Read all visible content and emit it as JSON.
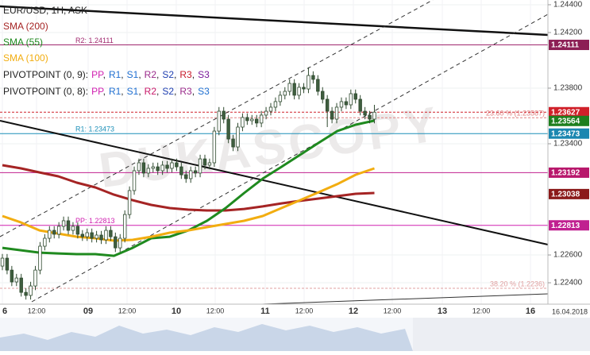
{
  "chart_data": {
    "type": "candlestick",
    "title": "EUR/USD, 1H, ASK",
    "watermark": "DUKASCOPY",
    "up_color": "#ffffff",
    "down_color": "#3f5e3f",
    "wick_color": "#2f4a2f",
    "open": [
      1.2252,
      1.22577,
      1.22491,
      1.22406,
      1.22434,
      1.22331,
      1.22309,
      1.22377,
      1.22491,
      1.22663,
      1.2272,
      1.22777,
      1.22749,
      1.22806,
      1.22846,
      1.22777,
      1.22806,
      1.22749,
      1.22731,
      1.2276,
      1.2272,
      1.22743,
      1.22709,
      1.22777,
      1.22731,
      1.22651,
      1.2272,
      1.22891,
      1.23063,
      1.23206,
      1.23263,
      1.23189,
      1.23223,
      1.23234,
      1.23206,
      1.23246,
      1.23223,
      1.23263,
      1.23234,
      1.23177,
      1.23149,
      1.23206,
      1.23189,
      1.23291,
      1.23246,
      1.23263,
      1.23491,
      1.23634,
      1.23577,
      1.23434,
      1.23377,
      1.2352,
      1.23589,
      1.23566,
      1.23577,
      1.23549,
      1.23606,
      1.23634,
      1.23663,
      1.23703,
      1.23749,
      1.23777,
      1.23834,
      1.23749,
      1.23806,
      1.23794,
      1.23891,
      1.23863,
      1.23777,
      1.2372,
      1.23634,
      1.23577,
      1.23663,
      1.23703,
      1.2368,
      1.2376,
      1.2372,
      1.23634,
      1.23606,
      1.23577
    ],
    "high": [
      1.22607,
      1.22607,
      1.22521,
      1.22464,
      1.22464,
      1.22361,
      1.22407,
      1.22521,
      1.22693,
      1.2275,
      1.22807,
      1.22807,
      1.22836,
      1.22876,
      1.22876,
      1.22836,
      1.22836,
      1.22779,
      1.2279,
      1.2279,
      1.22773,
      1.22773,
      1.22807,
      1.22807,
      1.22761,
      1.2275,
      1.22921,
      1.23093,
      1.23236,
      1.23293,
      1.23293,
      1.23253,
      1.23264,
      1.23264,
      1.23276,
      1.23276,
      1.23293,
      1.23293,
      1.23264,
      1.23207,
      1.23236,
      1.23236,
      1.23321,
      1.23321,
      1.23293,
      1.23521,
      1.23664,
      1.23664,
      1.23607,
      1.23464,
      1.2355,
      1.23619,
      1.23619,
      1.23607,
      1.23607,
      1.23636,
      1.23664,
      1.23693,
      1.23733,
      1.23779,
      1.23807,
      1.23864,
      1.23864,
      1.23836,
      1.23836,
      1.2395,
      1.23921,
      1.23893,
      1.23807,
      1.2375,
      1.23664,
      1.23693,
      1.23733,
      1.23733,
      1.2379,
      1.2379,
      1.2375,
      1.23664,
      1.23636,
      1.2368
    ],
    "low": [
      1.2249,
      1.22461,
      1.22376,
      1.22376,
      1.22301,
      1.22279,
      1.22279,
      1.22347,
      1.22461,
      1.22633,
      1.2269,
      1.22719,
      1.22719,
      1.22776,
      1.22747,
      1.22747,
      1.22719,
      1.22701,
      1.22701,
      1.2269,
      1.2269,
      1.22679,
      1.22679,
      1.22701,
      1.22621,
      1.22621,
      1.2269,
      1.22861,
      1.23033,
      1.23176,
      1.23159,
      1.23159,
      1.23193,
      1.23176,
      1.23176,
      1.23193,
      1.23193,
      1.23204,
      1.23147,
      1.23119,
      1.23119,
      1.23159,
      1.23159,
      1.23216,
      1.23216,
      1.23233,
      1.23461,
      1.23547,
      1.23404,
      1.23347,
      1.23347,
      1.2349,
      1.23536,
      1.23536,
      1.23519,
      1.23519,
      1.23576,
      1.23604,
      1.23633,
      1.23673,
      1.23719,
      1.23747,
      1.23719,
      1.23719,
      1.23764,
      1.23764,
      1.23833,
      1.23747,
      1.2369,
      1.2352,
      1.23547,
      1.23547,
      1.23633,
      1.2365,
      1.2365,
      1.2369,
      1.23604,
      1.23576,
      1.23547,
      1.23547
    ],
    "close": [
      1.22577,
      1.22491,
      1.22406,
      1.22434,
      1.22331,
      1.22309,
      1.22377,
      1.22491,
      1.22663,
      1.2272,
      1.22777,
      1.22749,
      1.22806,
      1.22846,
      1.22777,
      1.22806,
      1.22749,
      1.22731,
      1.2276,
      1.2272,
      1.22743,
      1.22709,
      1.22777,
      1.22731,
      1.22651,
      1.2272,
      1.22891,
      1.23063,
      1.23206,
      1.23263,
      1.23189,
      1.23223,
      1.23234,
      1.23206,
      1.23246,
      1.23223,
      1.23263,
      1.23234,
      1.23177,
      1.23149,
      1.23206,
      1.23189,
      1.23291,
      1.23246,
      1.23263,
      1.23491,
      1.23634,
      1.23577,
      1.23434,
      1.23377,
      1.2352,
      1.23589,
      1.23566,
      1.23577,
      1.23549,
      1.23606,
      1.23634,
      1.23663,
      1.23703,
      1.23749,
      1.23777,
      1.23834,
      1.23749,
      1.23806,
      1.23794,
      1.23891,
      1.23863,
      1.23777,
      1.2372,
      1.23634,
      1.23577,
      1.23663,
      1.23703,
      1.2368,
      1.2376,
      1.2372,
      1.23634,
      1.23606,
      1.23577,
      1.23627
    ],
    "overlays": [
      {
        "name": "SMA (200)",
        "color": "#a52424",
        "values": [
          1.23246,
          1.23223,
          1.23194,
          1.23166,
          1.2312,
          1.23086,
          1.23034,
          1.22994,
          1.2296,
          1.22937,
          1.22926,
          1.2292,
          1.2292,
          1.22931,
          1.22949,
          1.22971,
          1.22989,
          1.23006,
          1.23023,
          1.2304,
          1.23046
        ]
      },
      {
        "name": "SMA (55)",
        "color": "#1f8a1f",
        "values": [
          1.22651,
          1.22634,
          1.22617,
          1.22611,
          1.22606,
          1.22606,
          1.22594,
          1.22651,
          1.2272,
          1.22731,
          1.22777,
          1.22846,
          1.22937,
          1.23046,
          1.23149,
          1.23234,
          1.2332,
          1.23406,
          1.23491,
          1.23537,
          1.23566
        ]
      },
      {
        "name": "SMA (100)",
        "color": "#f2ad10",
        "values": [
          1.2288,
          1.22834,
          1.22777,
          1.22754,
          1.22731,
          1.2272,
          1.22703,
          1.22709,
          1.22731,
          1.2276,
          1.22777,
          1.228,
          1.22823,
          1.22846,
          1.2288,
          1.22937,
          1.22994,
          1.23051,
          1.23109,
          1.23177,
          1.23223
        ]
      }
    ],
    "pivot_legends": [
      {
        "label": "PIVOTPOINT (0, 9):",
        "items": [
          {
            "text": "PP",
            "color": "#d01fb0"
          },
          {
            "text": "R1",
            "color": "#1f6fd0"
          },
          {
            "text": "S1",
            "color": "#1f6fd0"
          },
          {
            "text": "R2",
            "color": "#9a2a8a"
          },
          {
            "text": "S2",
            "color": "#1f3fb0"
          },
          {
            "text": "R3",
            "color": "#c81a2a"
          },
          {
            "text": "S3",
            "color": "#7a1a9a"
          }
        ]
      },
      {
        "label": "PIVOTPOINT (0, 8):",
        "items": [
          {
            "text": "PP",
            "color": "#d01fb0"
          },
          {
            "text": "R1",
            "color": "#1f6fd0"
          },
          {
            "text": "S1",
            "color": "#1f6fd0"
          },
          {
            "text": "R2",
            "color": "#c81a6a"
          },
          {
            "text": "S2",
            "color": "#1f3fb0"
          },
          {
            "text": "R3",
            "color": "#9a2a8a"
          },
          {
            "text": "S3",
            "color": "#1f6fd0"
          }
        ]
      }
    ],
    "separator": ",",
    "price_lines": [
      {
        "value": 1.24111,
        "label": "R2: 1.24111",
        "color": "#a0286e",
        "dash": false
      },
      {
        "value": 1.23473,
        "label": "R1: 1.23473",
        "color": "#1c8fb8",
        "dash": false
      },
      {
        "value": 1.23192,
        "color": "#c0208f",
        "dash": false
      },
      {
        "value": 1.22813,
        "label": "PP: 1.22813",
        "color": "#d020b0",
        "dash": false
      },
      {
        "value": 1.23587,
        "label": "23.60 % (1.23587)",
        "color": "#e08080",
        "dash": true
      },
      {
        "value": 1.2236,
        "label": "38.20 % (1.2236)",
        "color": "#e0a0a0",
        "dash": true
      },
      {
        "value": 1.23627,
        "color": "#d0202a",
        "dash": true
      }
    ],
    "axis_boxes": [
      {
        "value": 1.24111,
        "color": "#8c1f55"
      },
      {
        "value": 1.23627,
        "color": "#d0202a"
      },
      {
        "value": 1.23564,
        "color": "#1e7f1e"
      },
      {
        "value": 1.23473,
        "color": "#1b87b0"
      },
      {
        "value": 1.23192,
        "color": "#b8186c"
      },
      {
        "value": 1.23038,
        "color": "#8b1a1a"
      },
      {
        "value": 1.22813,
        "color": "#c02090"
      }
    ],
    "ylim": [
      1.22246,
      1.24434
    ],
    "yticks": [
      {
        "value": 1.244,
        "label": "1.24400"
      },
      {
        "value": 1.242,
        "label": "1.24200"
      },
      {
        "value": 1.238,
        "label": "1.23800"
      },
      {
        "value": 1.234,
        "label": "1.23400"
      },
      {
        "value": 1.226,
        "label": "1.22600"
      },
      {
        "value": 1.224,
        "label": "1.22400"
      }
    ],
    "x_labels": [
      "6",
      "12:00",
      "09",
      "12:00",
      "10",
      "12:00",
      "11",
      "12:00",
      "12",
      "12:00",
      "13",
      "12:00",
      "16"
    ],
    "date_label": "16.04.2018",
    "grid": true
  }
}
